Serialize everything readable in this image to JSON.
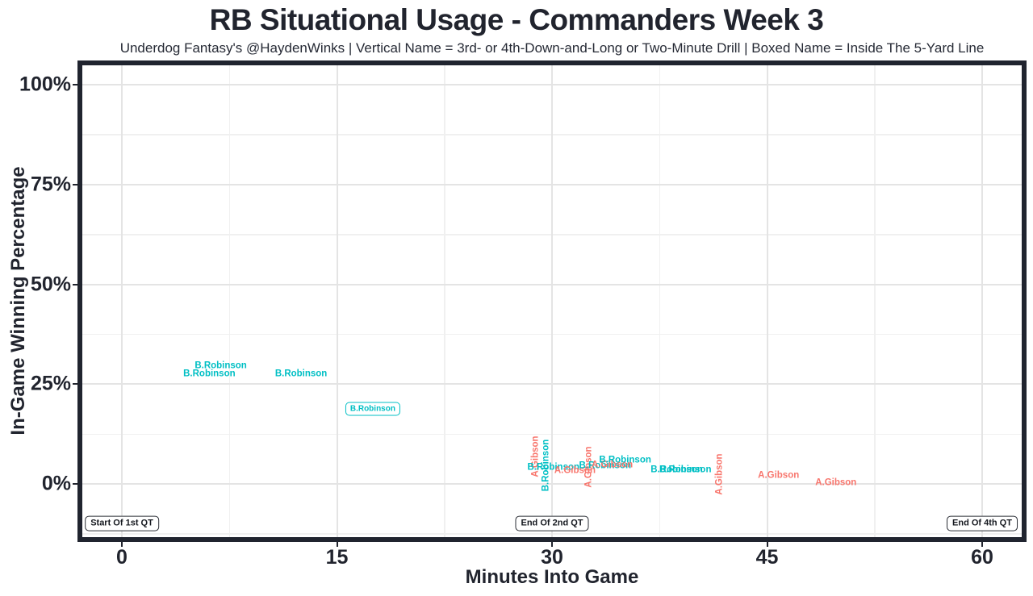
{
  "chart_data": {
    "type": "scatter",
    "title": "RB Situational Usage - Commanders Week 3",
    "subtitle": "Underdog Fantasy's @HaydenWinks | Vertical Name = 3rd- or 4th-Down-and-Long or Two-Minute Drill | Boxed Name = Inside The 5-Yard Line",
    "xlabel": "Minutes Into Game",
    "ylabel": "In-Game Winning Percentage",
    "x_ticks": [
      0,
      15,
      30,
      45,
      60
    ],
    "x_tick_labels": [
      "0",
      "15",
      "30",
      "45",
      "60"
    ],
    "x_minor_ticks": [
      7.5,
      22.5,
      37.5,
      52.5
    ],
    "xlim": [
      -2.8,
      62.8
    ],
    "y_ticks": [
      0,
      25,
      50,
      75,
      100
    ],
    "y_tick_labels": [
      "0%",
      "25%",
      "50%",
      "75%",
      "100%"
    ],
    "y_minor_ticks": [
      -12.5,
      12.5,
      37.5,
      62.5,
      87.5
    ],
    "ylim": [
      -13.2,
      104.8
    ],
    "grid": true,
    "legend": "none",
    "colors": {
      "B.Robinson": "#00BFC4",
      "A.Gibson": "#F8766D"
    },
    "points": [
      {
        "player": "B.Robinson",
        "x": 6.9,
        "y": 29.5,
        "orientation": "horizontal",
        "boxed": false
      },
      {
        "player": "B.Robinson",
        "x": 6.1,
        "y": 27.5,
        "orientation": "horizontal",
        "boxed": false
      },
      {
        "player": "B.Robinson",
        "x": 12.5,
        "y": 27.5,
        "orientation": "horizontal",
        "boxed": false
      },
      {
        "player": "B.Robinson",
        "x": 17.5,
        "y": 18.8,
        "orientation": "horizontal",
        "boxed": true
      },
      {
        "player": "A.Gibson",
        "x": 28.9,
        "y": 6.8,
        "orientation": "vertical",
        "boxed": false
      },
      {
        "player": "B.Robinson",
        "x": 29.6,
        "y": 4.6,
        "orientation": "vertical",
        "boxed": false
      },
      {
        "player": "B.Robinson",
        "x": 30.1,
        "y": 4.0,
        "orientation": "horizontal",
        "boxed": false
      },
      {
        "player": "A.Gibson",
        "x": 31.6,
        "y": 3.2,
        "orientation": "horizontal",
        "boxed": false
      },
      {
        "player": "A.Gibson",
        "x": 32.6,
        "y": 4.2,
        "orientation": "vertical",
        "boxed": false
      },
      {
        "player": "B.Robinson",
        "x": 33.7,
        "y": 4.4,
        "orientation": "horizontal",
        "boxed": false
      },
      {
        "player": "A.Gibson",
        "x": 34.2,
        "y": 4.6,
        "orientation": "horizontal",
        "boxed": false
      },
      {
        "player": "B.Robinson",
        "x": 35.1,
        "y": 5.9,
        "orientation": "horizontal",
        "boxed": false
      },
      {
        "player": "B.Robinson",
        "x": 38.7,
        "y": 3.5,
        "orientation": "horizontal",
        "boxed": false
      },
      {
        "player": "B.Robinson",
        "x": 39.3,
        "y": 3.5,
        "orientation": "horizontal",
        "boxed": false
      },
      {
        "player": "A.Gibson",
        "x": 41.7,
        "y": 2.4,
        "orientation": "vertical",
        "boxed": false
      },
      {
        "player": "A.Gibson",
        "x": 45.8,
        "y": 2.0,
        "orientation": "horizontal",
        "boxed": false
      },
      {
        "player": "A.Gibson",
        "x": 49.8,
        "y": 0.2,
        "orientation": "horizontal",
        "boxed": false
      }
    ],
    "annotations": [
      {
        "label": "Start Of 1st QT",
        "x": 0,
        "y": -9.9
      },
      {
        "label": "End Of 2nd QT",
        "x": 30,
        "y": -9.9
      },
      {
        "label": "End Of 4th QT",
        "x": 60,
        "y": -9.9
      }
    ]
  }
}
